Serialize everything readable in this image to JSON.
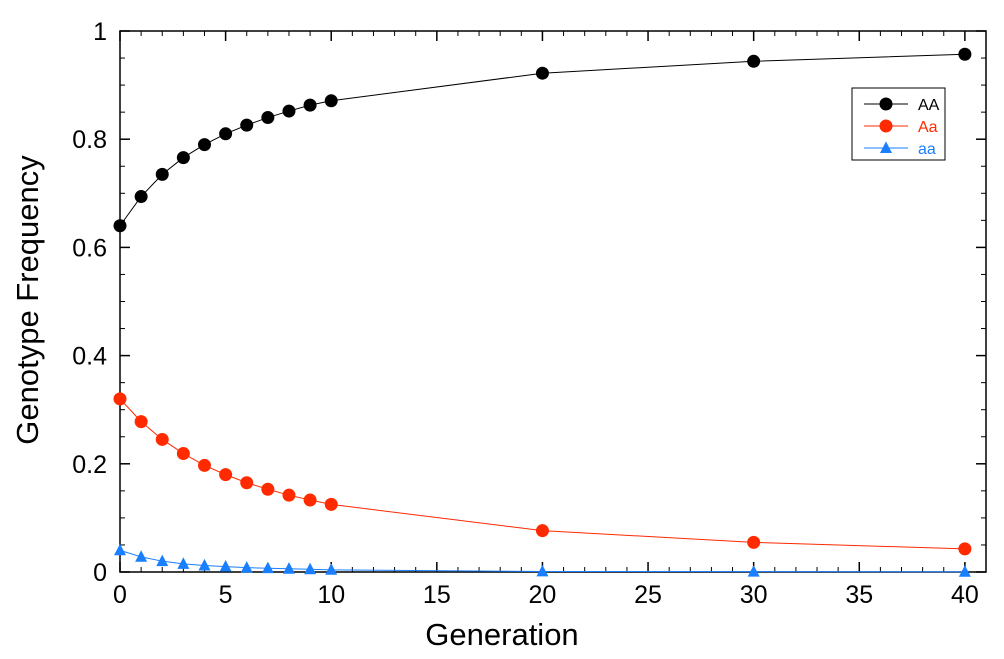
{
  "chart_data": {
    "type": "line",
    "title": "",
    "xlabel": "Generation",
    "ylabel": "Genotype Frequency",
    "xlim": [
      0,
      41
    ],
    "ylim": [
      0,
      1
    ],
    "xticks": [
      0,
      5,
      10,
      15,
      20,
      25,
      30,
      35,
      40
    ],
    "yticks": [
      0,
      0.2,
      0.4,
      0.6,
      0.8,
      1
    ],
    "xtick_labels": [
      "0",
      "5",
      "10",
      "15",
      "20",
      "25",
      "30",
      "35",
      "40"
    ],
    "ytick_labels": [
      "0",
      "0.2",
      "0.4",
      "0.6",
      "0.8",
      "1"
    ],
    "grid": false,
    "legend_position": "top-right",
    "series": [
      {
        "name": "AA",
        "color": "#000000",
        "marker": "circle",
        "x": [
          0,
          1,
          2,
          3,
          4,
          5,
          6,
          7,
          8,
          9,
          10,
          20,
          30,
          40
        ],
        "values": [
          0.64,
          0.694,
          0.735,
          0.766,
          0.79,
          0.81,
          0.826,
          0.84,
          0.852,
          0.863,
          0.871,
          0.922,
          0.944,
          0.957
        ]
      },
      {
        "name": "Aa",
        "color": "#ff2a00",
        "marker": "circle",
        "x": [
          0,
          1,
          2,
          3,
          4,
          5,
          6,
          7,
          8,
          9,
          10,
          20,
          30,
          40
        ],
        "values": [
          0.32,
          0.278,
          0.245,
          0.219,
          0.197,
          0.18,
          0.165,
          0.153,
          0.142,
          0.133,
          0.125,
          0.0764,
          0.0548,
          0.0427
        ]
      },
      {
        "name": "aa",
        "color": "#1a7fff",
        "marker": "triangle",
        "x": [
          0,
          1,
          2,
          3,
          4,
          5,
          6,
          7,
          8,
          9,
          10,
          20,
          30,
          40
        ],
        "values": [
          0.04,
          0.028,
          0.02,
          0.015,
          0.012,
          0.01,
          0.008,
          0.007,
          0.006,
          0.005,
          0.004,
          0.001,
          0.0006,
          0.0003
        ]
      }
    ]
  }
}
